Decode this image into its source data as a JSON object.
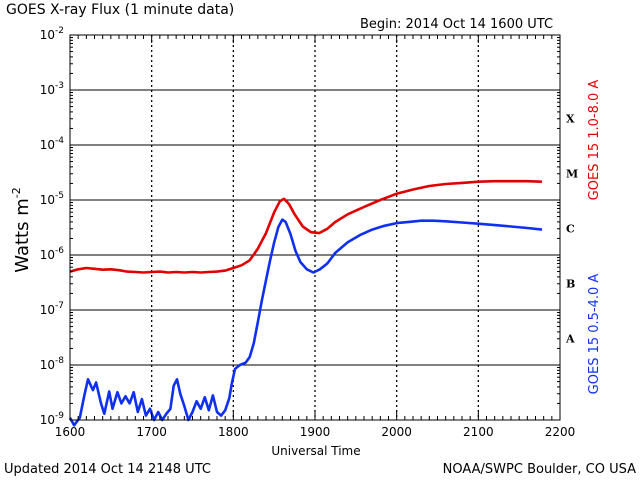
{
  "header": {
    "title": "GOES X-ray Flux (1 minute data)",
    "begin": "Begin: 2014 Oct 14 1600 UTC"
  },
  "footer": {
    "updated": "Updated 2014 Oct 14 2148 UTC",
    "credit": "NOAA/SWPC Boulder, CO USA"
  },
  "colors": {
    "long_channel": "#e00000",
    "short_channel": "#1030f0",
    "axes": "#000000"
  },
  "chart_data": {
    "type": "line",
    "title": "GOES X-ray Flux (1 minute data)",
    "xlabel": "Universal Time",
    "ylabel": "Watts m",
    "ylabel_exponent": "-2",
    "y_scale": "log",
    "xlim": [
      1600,
      2200
    ],
    "ylim": [
      1e-09,
      0.01
    ],
    "x_ticks": [
      "1600",
      "1700",
      "1800",
      "1900",
      "2000",
      "2100",
      "2200"
    ],
    "y_ticks": [
      {
        "base": "10",
        "exp": "-2"
      },
      {
        "base": "10",
        "exp": "-3"
      },
      {
        "base": "10",
        "exp": "-4"
      },
      {
        "base": "10",
        "exp": "-5"
      },
      {
        "base": "10",
        "exp": "-6"
      },
      {
        "base": "10",
        "exp": "-7"
      },
      {
        "base": "10",
        "exp": "-8"
      },
      {
        "base": "10",
        "exp": "-9"
      }
    ],
    "flare_classes": [
      "X",
      "M",
      "C",
      "B",
      "A"
    ],
    "grid": true,
    "series": [
      {
        "name": "GOES 15 1.0-8.0 A",
        "color": "#e00000",
        "points": [
          [
            1600,
            5e-07
          ],
          [
            1610,
            5.5e-07
          ],
          [
            1620,
            5.8e-07
          ],
          [
            1630,
            5.6e-07
          ],
          [
            1640,
            5.4e-07
          ],
          [
            1650,
            5.5e-07
          ],
          [
            1660,
            5.3e-07
          ],
          [
            1670,
            5e-07
          ],
          [
            1680,
            4.9e-07
          ],
          [
            1690,
            4.8e-07
          ],
          [
            1700,
            4.9e-07
          ],
          [
            1710,
            5e-07
          ],
          [
            1720,
            4.8e-07
          ],
          [
            1730,
            4.9e-07
          ],
          [
            1740,
            4.8e-07
          ],
          [
            1750,
            4.9e-07
          ],
          [
            1760,
            4.8e-07
          ],
          [
            1770,
            4.9e-07
          ],
          [
            1780,
            5e-07
          ],
          [
            1790,
            5.2e-07
          ],
          [
            1800,
            5.8e-07
          ],
          [
            1810,
            6.5e-07
          ],
          [
            1820,
            8e-07
          ],
          [
            1830,
            1.3e-06
          ],
          [
            1840,
            2.5e-06
          ],
          [
            1850,
            6e-06
          ],
          [
            1857,
            9.5e-06
          ],
          [
            1862,
            1.05e-05
          ],
          [
            1868,
            8.5e-06
          ],
          [
            1875,
            5.5e-06
          ],
          [
            1885,
            3.3e-06
          ],
          [
            1895,
            2.6e-06
          ],
          [
            1905,
            2.5e-06
          ],
          [
            1915,
            3e-06
          ],
          [
            1925,
            4e-06
          ],
          [
            1940,
            5.5e-06
          ],
          [
            1960,
            7.5e-06
          ],
          [
            1980,
            1e-05
          ],
          [
            2000,
            1.3e-05
          ],
          [
            2020,
            1.55e-05
          ],
          [
            2040,
            1.8e-05
          ],
          [
            2060,
            1.95e-05
          ],
          [
            2080,
            2.05e-05
          ],
          [
            2100,
            2.15e-05
          ],
          [
            2120,
            2.2e-05
          ],
          [
            2140,
            2.2e-05
          ],
          [
            2160,
            2.2e-05
          ],
          [
            2178,
            2.15e-05
          ]
        ]
      },
      {
        "name": "GOES 15 0.5-4.0 A",
        "color": "#1030f0",
        "points": [
          [
            1600,
            1.1e-09
          ],
          [
            1605,
            8e-10
          ],
          [
            1612,
            1.1e-09
          ],
          [
            1618,
            3e-09
          ],
          [
            1622,
            5.5e-09
          ],
          [
            1628,
            3.5e-09
          ],
          [
            1632,
            4.8e-09
          ],
          [
            1638,
            2e-09
          ],
          [
            1642,
            1.3e-09
          ],
          [
            1648,
            3.3e-09
          ],
          [
            1652,
            1.6e-09
          ],
          [
            1658,
            3.2e-09
          ],
          [
            1663,
            2e-09
          ],
          [
            1668,
            2.7e-09
          ],
          [
            1673,
            2e-09
          ],
          [
            1678,
            3.2e-09
          ],
          [
            1683,
            1.4e-09
          ],
          [
            1688,
            2.4e-09
          ],
          [
            1693,
            1.2e-09
          ],
          [
            1698,
            1.6e-09
          ],
          [
            1703,
            1e-09
          ],
          [
            1708,
            1.4e-09
          ],
          [
            1713,
            1e-09
          ],
          [
            1718,
            1.3e-09
          ],
          [
            1723,
            1.6e-09
          ],
          [
            1727,
            4.2e-09
          ],
          [
            1731,
            5.5e-09
          ],
          [
            1735,
            3e-09
          ],
          [
            1740,
            1.8e-09
          ],
          [
            1745,
            1e-09
          ],
          [
            1750,
            1.4e-09
          ],
          [
            1755,
            2.2e-09
          ],
          [
            1760,
            1.6e-09
          ],
          [
            1765,
            2.6e-09
          ],
          [
            1770,
            1.5e-09
          ],
          [
            1775,
            2.8e-09
          ],
          [
            1780,
            1.4e-09
          ],
          [
            1785,
            1.2e-09
          ],
          [
            1790,
            1.5e-09
          ],
          [
            1795,
            2.5e-09
          ],
          [
            1798,
            4.5e-09
          ],
          [
            1802,
            8.5e-09
          ],
          [
            1808,
            1e-08
          ],
          [
            1815,
            1.1e-08
          ],
          [
            1820,
            1.4e-08
          ],
          [
            1825,
            2.5e-08
          ],
          [
            1830,
            6e-08
          ],
          [
            1835,
            1.5e-07
          ],
          [
            1840,
            3.5e-07
          ],
          [
            1845,
            8e-07
          ],
          [
            1850,
            1.7e-06
          ],
          [
            1855,
            3.2e-06
          ],
          [
            1860,
            4.4e-06
          ],
          [
            1864,
            4e-06
          ],
          [
            1870,
            2.4e-06
          ],
          [
            1876,
            1.2e-06
          ],
          [
            1882,
            7.5e-07
          ],
          [
            1890,
            5.5e-07
          ],
          [
            1898,
            4.8e-07
          ],
          [
            1906,
            5.5e-07
          ],
          [
            1915,
            7e-07
          ],
          [
            1925,
            1.1e-06
          ],
          [
            1940,
            1.7e-06
          ],
          [
            1955,
            2.3e-06
          ],
          [
            1970,
            2.9e-06
          ],
          [
            1985,
            3.4e-06
          ],
          [
            2000,
            3.8e-06
          ],
          [
            2015,
            4e-06
          ],
          [
            2030,
            4.2e-06
          ],
          [
            2045,
            4.2e-06
          ],
          [
            2060,
            4.1e-06
          ],
          [
            2080,
            3.9e-06
          ],
          [
            2100,
            3.7e-06
          ],
          [
            2120,
            3.5e-06
          ],
          [
            2140,
            3.3e-06
          ],
          [
            2160,
            3.1e-06
          ],
          [
            2178,
            2.9e-06
          ]
        ]
      }
    ]
  }
}
